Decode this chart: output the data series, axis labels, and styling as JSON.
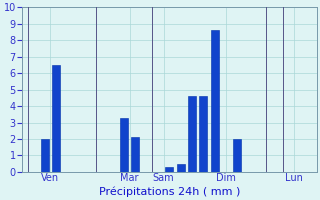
{
  "bar_positions": [
    2,
    3,
    9,
    10,
    13,
    14,
    15,
    16,
    17,
    19
  ],
  "bar_values": [
    2.0,
    6.5,
    3.3,
    2.1,
    0.3,
    0.5,
    4.6,
    4.6,
    8.6,
    2.0
  ],
  "bar_width": 0.7,
  "bar_color": "#1144cc",
  "bar_edge_color": "#0030aa",
  "xlim": [
    0,
    26
  ],
  "ylim": [
    0,
    10
  ],
  "yticks": [
    0,
    1,
    2,
    3,
    4,
    5,
    6,
    7,
    8,
    9,
    10
  ],
  "xlabel": "Précipitations 24h ( mm )",
  "xlabel_color": "#1111cc",
  "xlabel_fontsize": 8,
  "background_color": "#dff4f4",
  "grid_color": "#aad8d8",
  "tick_color": "#3333cc",
  "day_labels": [
    {
      "label": "Ven",
      "x": 2.5
    },
    {
      "label": "Mar",
      "x": 9.5
    },
    {
      "label": "Sam",
      "x": 12.5
    },
    {
      "label": "Dim",
      "x": 18.0
    },
    {
      "label": "Lun",
      "x": 24.0
    }
  ],
  "day_line_x": [
    0.5,
    6.5,
    11.5,
    21.5,
    23.0
  ],
  "figsize": [
    3.2,
    2.0
  ],
  "dpi": 100
}
